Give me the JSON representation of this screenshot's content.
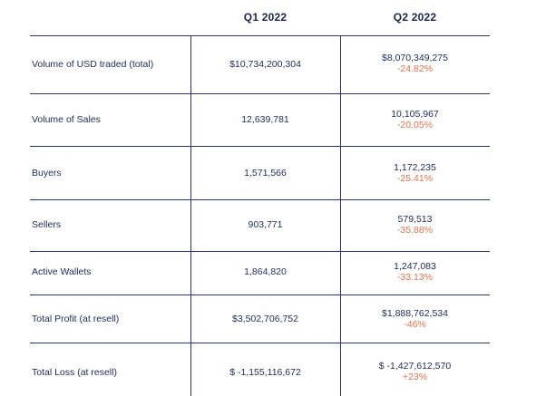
{
  "table": {
    "headers": {
      "q1": "Q1 2022",
      "q2": "Q2 2022"
    },
    "rows": [
      {
        "label": "Volume of USD traded (total)",
        "q1": "$10,734,200,304",
        "q2": "$8,070,349,275",
        "change": "-24.82%"
      },
      {
        "label": "Volume of Sales",
        "q1": "12,639,781",
        "q2": "10,105,967",
        "change": "-20.05%"
      },
      {
        "label": "Buyers",
        "q1": "1,571,566",
        "q2": "1,172,235",
        "change": "-25.41%"
      },
      {
        "label": "Sellers",
        "q1": "903,771",
        "q2": "579,513",
        "change": "-35.88%"
      },
      {
        "label": "Active Wallets",
        "q1": "1,864,820",
        "q2": "1,247,083",
        "change": "-33.13%"
      },
      {
        "label": "Total Profit (at resell)",
        "q1": "$3,502,706,752",
        "q2": "$1,888,762,534",
        "change": "-46%"
      },
      {
        "label": "Total Loss (at resell)",
        "q1": "$ -1,155,116,672",
        "q2": "$ -1,427,612,570",
        "change": "+23%"
      }
    ]
  },
  "colors": {
    "text": "#1e2a5a",
    "lines": "#2b3470",
    "change": "#e8704a"
  }
}
